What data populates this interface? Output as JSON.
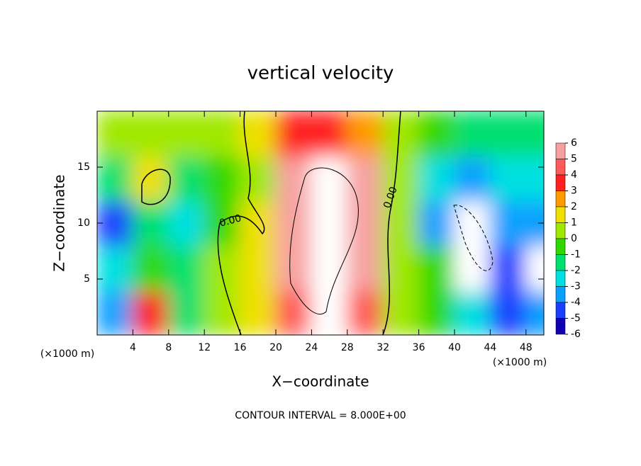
{
  "chart_data": {
    "type": "heatmap",
    "title": "vertical velocity",
    "xlabel": "X−coordinate",
    "ylabel": "Z−coordinate",
    "xunit": "(×1000 m)",
    "xunit_right": "(×1000 m)",
    "footer": "CONTOUR INTERVAL = 8.000E+00",
    "contour_labels": [
      "0.00",
      "0.00"
    ],
    "xlim": [
      0,
      50
    ],
    "ylim": [
      0,
      20
    ],
    "xticks": [
      4,
      8,
      12,
      16,
      20,
      24,
      28,
      32,
      36,
      40,
      44,
      48
    ],
    "yticks": [
      5,
      10,
      15
    ],
    "x": [
      2,
      6,
      10,
      14,
      18,
      22,
      26,
      30,
      34,
      38,
      42,
      46,
      50
    ],
    "y": [
      2,
      6,
      10,
      14,
      18
    ],
    "z": [
      [
        -4,
        3,
        -2,
        0,
        1,
        4,
        7,
        4,
        0,
        -1,
        -3,
        -5,
        -4
      ],
      [
        -3,
        -1,
        -2,
        0,
        1,
        6,
        8,
        5,
        0,
        -1,
        -8,
        -5,
        -8
      ],
      [
        -5,
        -2,
        -3,
        -1,
        1,
        6,
        8,
        6,
        0,
        -4,
        -8,
        -4,
        -4
      ],
      [
        -2,
        1,
        -2,
        -1,
        0,
        5,
        8,
        5,
        0,
        -3,
        -4,
        -3,
        -3
      ],
      [
        0,
        0,
        0,
        0,
        1,
        3,
        3,
        2,
        0,
        -1,
        -2,
        -2,
        -2
      ]
    ],
    "colorbar_ticks": [
      6,
      5,
      4,
      3,
      2,
      1,
      0,
      -1,
      -2,
      -3,
      -4,
      -5,
      -6
    ],
    "colors": [
      "#f7a0a0",
      "#ff5a5a",
      "#ff2020",
      "#ff9a00",
      "#f0e000",
      "#a0e800",
      "#30d800",
      "#00e070",
      "#00e0e0",
      "#0aa0ff",
      "#1a40ff",
      "#1000b0"
    ],
    "out_of_range_color": "#ffffff"
  }
}
